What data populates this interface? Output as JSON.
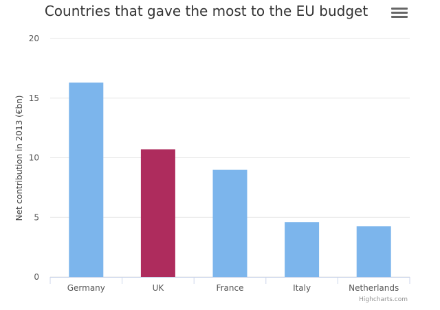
{
  "chart_data": {
    "type": "bar",
    "title": "Countries that gave the most to the EU budget",
    "ylabel": "Net contribution in 2013 (€bn)",
    "xlabel": "",
    "categories": [
      "Germany",
      "UK",
      "France",
      "Italy",
      "Netherlands"
    ],
    "values": [
      16.3,
      10.7,
      9.0,
      4.6,
      4.25
    ],
    "highlight_colors": [
      "#7cb5ec",
      "#ae2c5d",
      "#7cb5ec",
      "#7cb5ec",
      "#7cb5ec"
    ],
    "ylim": [
      0,
      20
    ],
    "yticks": [
      0,
      5,
      10,
      15,
      20
    ],
    "grid": true,
    "legend": "none"
  },
  "credits": "Highcharts.com",
  "icons": {
    "menu": "hamburger-menu-icon"
  }
}
